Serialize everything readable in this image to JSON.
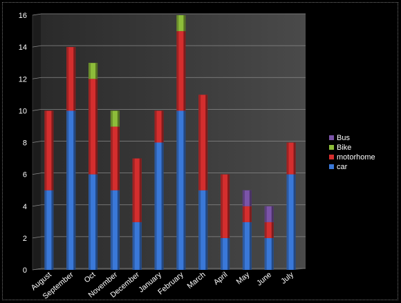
{
  "chart_data": {
    "type": "bar",
    "stacked": true,
    "categories": [
      "August",
      "September",
      "Oct",
      "November",
      "December",
      "January",
      "February",
      "March",
      "April",
      "May",
      "June",
      "July"
    ],
    "series": [
      {
        "name": "car",
        "color": "#3a78d8",
        "values": [
          5,
          10,
          6,
          5,
          3,
          8,
          10,
          5,
          2,
          3,
          2,
          6
        ]
      },
      {
        "name": "motorhome",
        "color": "#d42e2e",
        "values": [
          5,
          4,
          6,
          4,
          4,
          2,
          5,
          6,
          4,
          1,
          1,
          2
        ]
      },
      {
        "name": "Bike",
        "color": "#8dbd3a",
        "values": [
          0,
          0,
          1,
          1,
          0,
          0,
          1,
          0,
          0,
          0,
          0,
          0
        ]
      },
      {
        "name": "Bus",
        "color": "#7b54a8",
        "values": [
          0,
          0,
          0,
          0,
          0,
          0,
          0,
          0,
          0,
          1,
          1,
          0
        ]
      }
    ],
    "legend_order": [
      "Bus",
      "Bike",
      "motorhome",
      "car"
    ],
    "ylim": [
      0,
      16
    ],
    "yticks": [
      0,
      2,
      4,
      6,
      8,
      10,
      12,
      14,
      16
    ],
    "grid": true,
    "legend_position": "right",
    "title": "",
    "xlabel": "",
    "ylabel": ""
  }
}
